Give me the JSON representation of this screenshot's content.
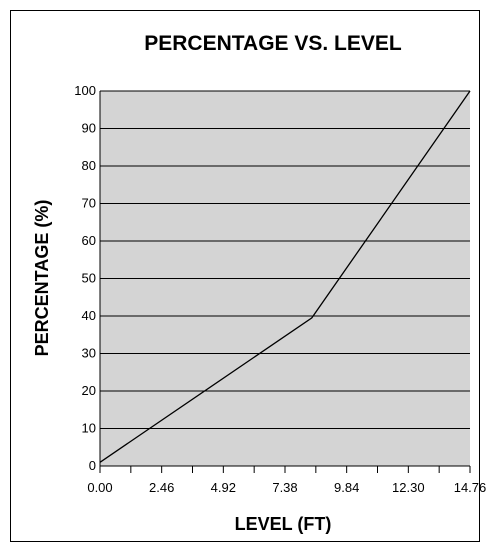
{
  "chart_data": {
    "type": "line",
    "title": "PERCENTAGE VS. LEVEL",
    "xlabel": "LEVEL (FT)",
    "ylabel": "PERCENTAGE (%)",
    "xlim": [
      0,
      14.76
    ],
    "ylim": [
      0,
      100
    ],
    "x_ticks": [
      "0.00",
      "2.46",
      "4.92",
      "7.38",
      "9.84",
      "12.30",
      "14.76"
    ],
    "y_ticks": [
      "0",
      "10",
      "20",
      "30",
      "40",
      "50",
      "60",
      "70",
      "80",
      "90",
      "100"
    ],
    "grid": true,
    "series": [
      {
        "x": [
          0.0,
          8.45,
          14.76
        ],
        "values": [
          1,
          39.5,
          100
        ]
      }
    ],
    "colors": {
      "plot_background": "#d4d4d4",
      "line": "#000000",
      "grid": "#000000"
    }
  }
}
